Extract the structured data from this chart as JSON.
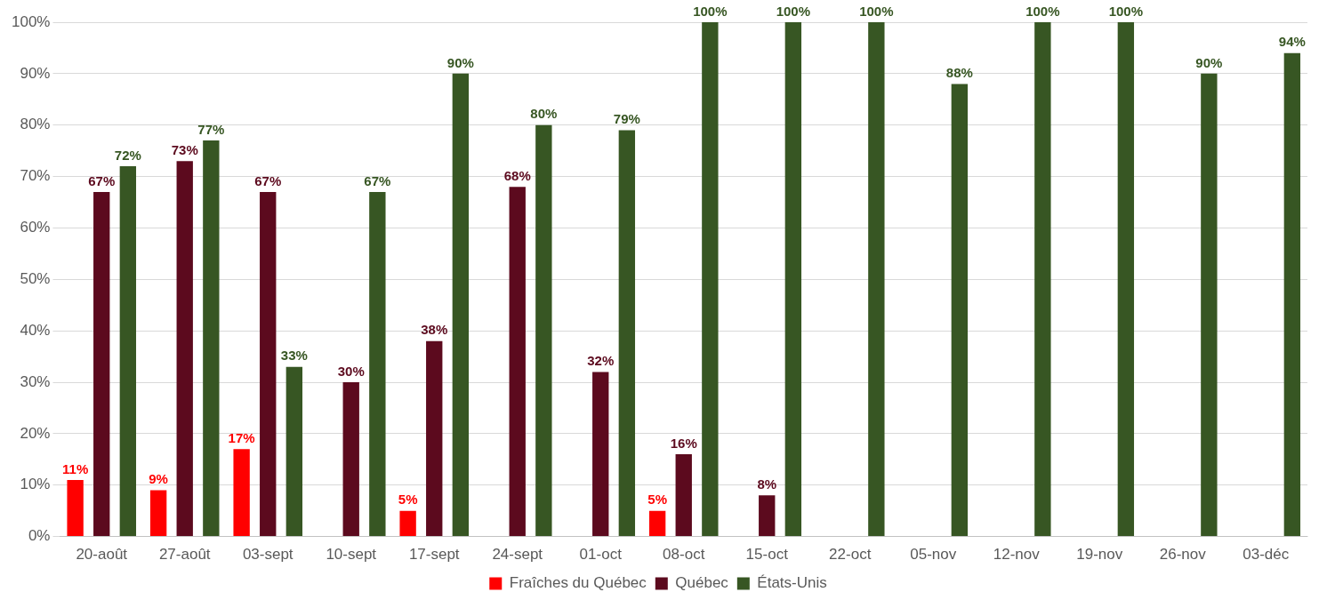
{
  "chart_data": {
    "type": "bar",
    "categories": [
      "20-août",
      "27-août",
      "03-sept",
      "10-sept",
      "17-sept",
      "24-sept",
      "01-oct",
      "08-oct",
      "15-oct",
      "22-oct",
      "05-nov",
      "12-nov",
      "19-nov",
      "26-nov",
      "03-déc"
    ],
    "series": [
      {
        "name": "Fraîches du Québec",
        "color": "#ff0000",
        "values": [
          11,
          9,
          17,
          null,
          5,
          null,
          null,
          5,
          null,
          null,
          null,
          null,
          null,
          null,
          null
        ],
        "value_labels": [
          "11%",
          "9%",
          "17%",
          null,
          "5%",
          null,
          null,
          "5%",
          null,
          null,
          null,
          null,
          null,
          null,
          null
        ]
      },
      {
        "name": "Québec",
        "color": "#5c0a1e",
        "values": [
          67,
          73,
          67,
          30,
          38,
          68,
          32,
          16,
          8,
          null,
          null,
          null,
          null,
          null,
          null
        ],
        "value_labels": [
          "67%",
          "73%",
          "67%",
          "30%",
          "38%",
          "68%",
          "32%",
          "16%",
          "8%",
          null,
          null,
          null,
          null,
          null,
          null
        ]
      },
      {
        "name": "États-Unis",
        "color": "#375623",
        "values": [
          72,
          77,
          33,
          67,
          90,
          80,
          79,
          100,
          100,
          100,
          88,
          100,
          100,
          90,
          94
        ],
        "value_labels": [
          "72%",
          "77%",
          "33%",
          "67%",
          "90%",
          "80%",
          "79%",
          "100%",
          "100%",
          "100%",
          "88%",
          "100%",
          "100%",
          "90%",
          "94%"
        ]
      }
    ],
    "ylim": [
      0,
      100
    ],
    "yticks": [
      {
        "value": 0,
        "label": "0%"
      },
      {
        "value": 10,
        "label": "10%"
      },
      {
        "value": 20,
        "label": "20%"
      },
      {
        "value": 30,
        "label": "30%"
      },
      {
        "value": 40,
        "label": "40%"
      },
      {
        "value": 50,
        "label": "50%"
      },
      {
        "value": 60,
        "label": "60%"
      },
      {
        "value": 70,
        "label": "70%"
      },
      {
        "value": 80,
        "label": "80%"
      },
      {
        "value": 90,
        "label": "90%"
      },
      {
        "value": 100,
        "label": "100%"
      }
    ],
    "grid": "y",
    "legend": "bottom"
  }
}
